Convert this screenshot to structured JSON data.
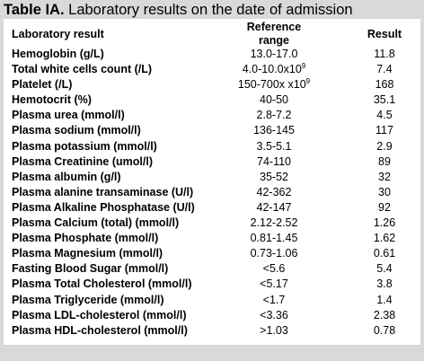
{
  "title": {
    "label": "Table IA.",
    "text": "Laboratory results on the date of admission"
  },
  "headers": {
    "name": "Laboratory result",
    "range_line1": "Reference",
    "range_line2": "range",
    "result": "Result"
  },
  "rows": [
    {
      "name": "Hemoglobin (g/L)",
      "range": "13.0-17.0",
      "result": "11.8"
    },
    {
      "name": "Total white cells count (/L)",
      "range": "4.0-10.0x10",
      "range_sup": "9",
      "result": "7.4"
    },
    {
      "name": "Platelet (/L)",
      "range": "150-700x x10",
      "range_sup": "9",
      "result": "168"
    },
    {
      "name": "Hemotocrit (%)",
      "range": "40-50",
      "result": "35.1"
    },
    {
      "name": "Plasma urea (mmol/l)",
      "range": "2.8-7.2",
      "result": "4.5"
    },
    {
      "name": "Plasma sodium (mmol/l)",
      "range": "136-145",
      "result": "117"
    },
    {
      "name": "Plasma potassium (mmol/l)",
      "range": "3.5-5.1",
      "result": "2.9"
    },
    {
      "name": "Plasma Creatinine (umol/l)",
      "range": "74-110",
      "result": "89"
    },
    {
      "name": "Plasma albumin (g/l)",
      "range": "35-52",
      "result": "32"
    },
    {
      "name": "Plasma alanine transaminase (U/l)",
      "range": "42-362",
      "result": "30"
    },
    {
      "name": "Plasma Alkaline Phosphatase (U/l)",
      "range": "42-147",
      "result": "92"
    },
    {
      "name": "Plasma Calcium (total) (mmol/l)",
      "range": "2.12-2.52",
      "result": "1.26"
    },
    {
      "name": "Plasma Phosphate (mmol/l)",
      "range": "0.81-1.45",
      "result": "1.62"
    },
    {
      "name": "Plasma Magnesium (mmol/l)",
      "range": "0.73-1.06",
      "result": "0.61"
    },
    {
      "name": "Fasting Blood Sugar (mmol/l)",
      "range": "<5.6",
      "result": "5.4"
    },
    {
      "name": "Plasma Total Cholesterol (mmol/l)",
      "range": "<5.17",
      "result": "3.8"
    },
    {
      "name": "Plasma Triglyceride (mmol/l)",
      "range": "<1.7",
      "result": "1.4"
    },
    {
      "name": "Plasma LDL-cholesterol (mmol/l)",
      "range": "<3.36",
      "result": "2.38"
    },
    {
      "name": "Plasma HDL-cholesterol (mmol/l)",
      "range": ">1.03",
      "result": "0.78"
    }
  ]
}
